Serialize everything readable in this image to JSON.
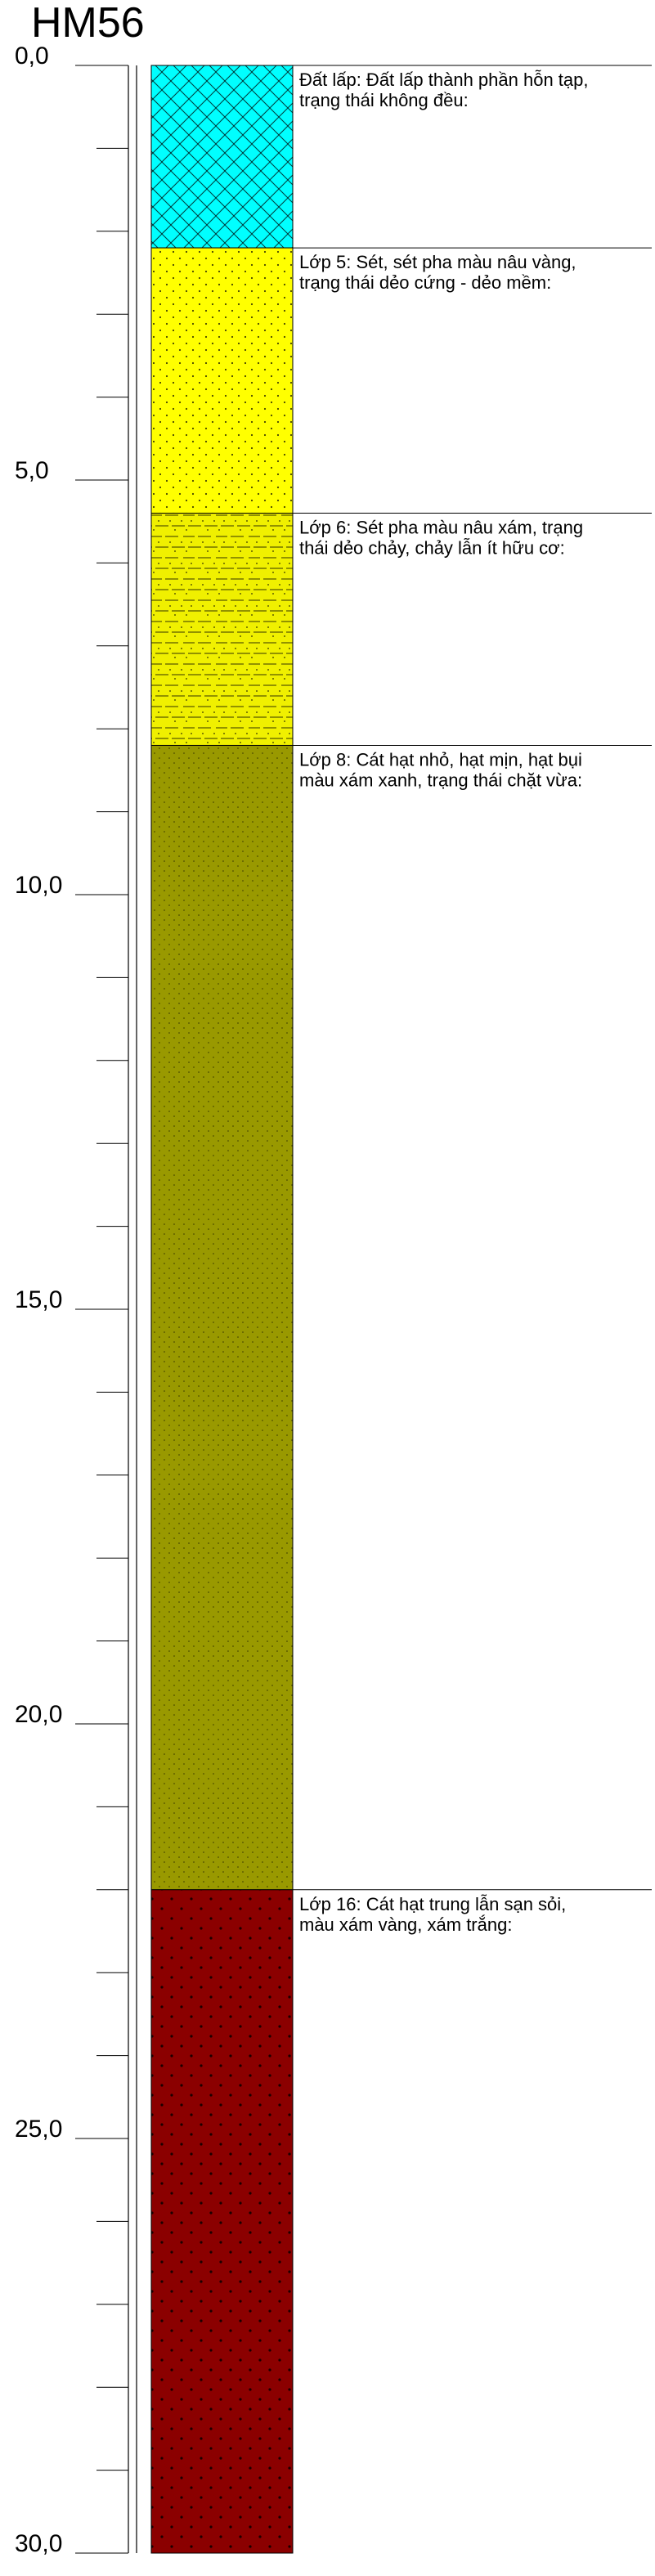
{
  "title": "HM56",
  "depth_axis": {
    "min": 0,
    "max": 30,
    "major_ticks": [
      {
        "value": 0,
        "label": "0,0"
      },
      {
        "value": 5,
        "label": "5,0"
      },
      {
        "value": 10,
        "label": "10,0"
      },
      {
        "value": 15,
        "label": "15,0"
      },
      {
        "value": 20,
        "label": "20,0"
      },
      {
        "value": 25,
        "label": "25,0"
      },
      {
        "value": 30,
        "label": "30,0"
      }
    ],
    "minor_tick_step": 1
  },
  "layers": [
    {
      "top": 0.0,
      "bottom": 2.2,
      "pattern": "crosshatch",
      "color": "#00ffff",
      "description": [
        "Đất lấp: Đất lấp thành phần hỗn tạp,",
        "trạng thái không đều:"
      ]
    },
    {
      "top": 2.2,
      "bottom": 5.4,
      "pattern": "dots",
      "color": "#ffff00",
      "description": [
        "Lớp 5: Sét, sét pha màu nâu vàng,",
        "trạng thái dẻo cứng - dẻo mềm:"
      ]
    },
    {
      "top": 5.4,
      "bottom": 8.2,
      "pattern": "dash-dot",
      "color": "#f0f000",
      "description": [
        "Lớp 6: Sét pha màu nâu xám, trạng",
        "thái dẻo chảy, chảy lẫn ít hữu cơ:"
      ]
    },
    {
      "top": 8.2,
      "bottom": 22.0,
      "pattern": "fine-dots",
      "color": "#999900",
      "description": [
        "Lớp 8: Cát hạt nhỏ, hạt mịn, hạt bụi",
        "màu xám xanh, trạng thái chặt vừa:"
      ]
    },
    {
      "top": 22.0,
      "bottom": 30.0,
      "pattern": "coarse-dots",
      "color": "#8b0000",
      "description": [
        "Lớp 16: Cát hạt trung lẫn sạn sỏi,",
        "màu xám vàng, xám trắng:"
      ]
    }
  ]
}
